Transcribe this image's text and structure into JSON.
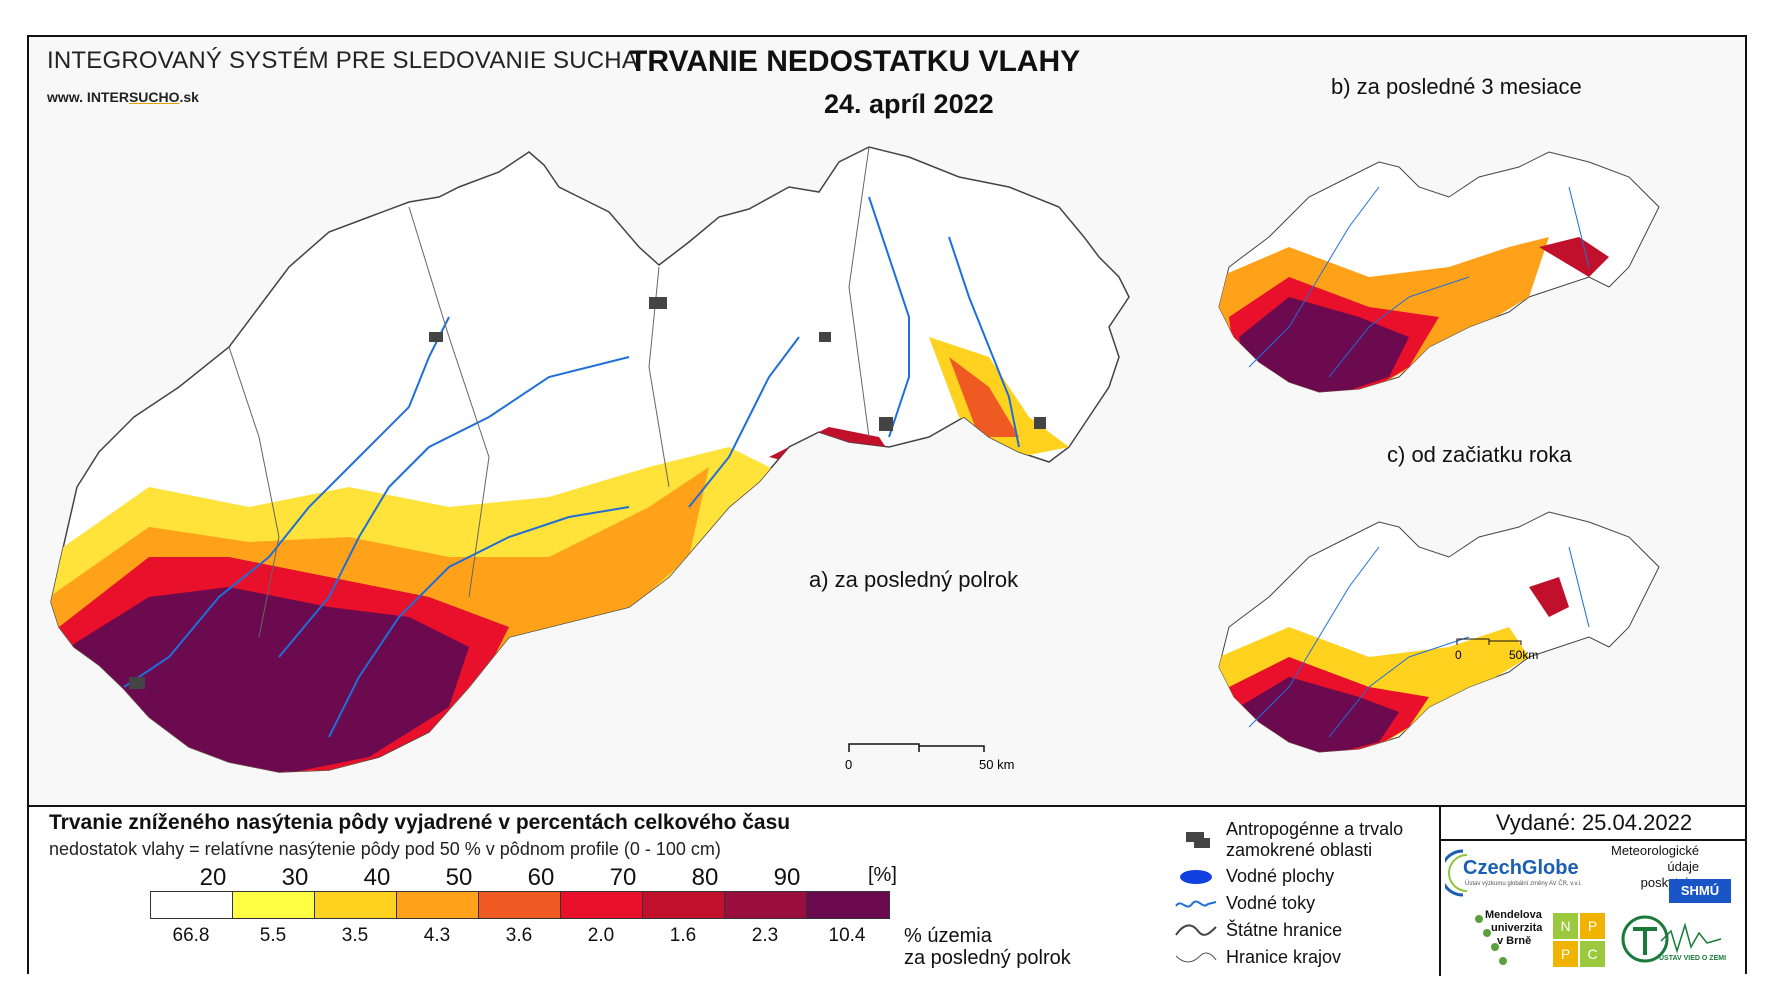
{
  "header": {
    "system_title": "INTEGROVANÝ SYSTÉM PRE SLEDOVANIE SUCHA",
    "website_prefix": "www. INTER",
    "website_highlight": "SUCHO",
    "website_suffix": ".sk",
    "title": "TRVANIE NEDOSTATKU VLAHY",
    "date": "24. apríl 2022"
  },
  "maps": {
    "a_label": "a) za posledný polrok",
    "b_label": "b) za posledné 3 mesiace",
    "c_label": "c) od začiatku roka",
    "scale_main": {
      "start": "0",
      "end": "50 km"
    },
    "scale_small": {
      "start": "0",
      "end": "50km"
    }
  },
  "legend": {
    "title": "Trvanie zníženého nasýtenia pôdy vyjadrené v percentách celkového času",
    "subtitle": "nedostatok vlahy = relatívne nasýtenie pôdy pod 50 % v pôdnom profile (0 - 100 cm)",
    "thresholds": [
      "20",
      "30",
      "40",
      "50",
      "60",
      "70",
      "80",
      "90"
    ],
    "unit": "[%]",
    "colors": [
      "#ffffff",
      "#ffff44",
      "#ffd21f",
      "#ffa21a",
      "#ef5a22",
      "#e8102a",
      "#c0102c",
      "#9a0e3e",
      "#6b0a4e"
    ],
    "area_percents": [
      "66.8",
      "5.5",
      "3.5",
      "4.3",
      "3.6",
      "2.0",
      "1.6",
      "2.3",
      "10.4"
    ],
    "area_caption_line1": "% územia",
    "area_caption_line2": "za posledný polrok"
  },
  "symbols": {
    "anthropogenic": "Antropogénne a trvalo zamokrené oblasti",
    "anthropogenic_line1": "Antropogénne a trvalo",
    "anthropogenic_line2": "zamokrené oblasti",
    "water_areas": "Vodné plochy",
    "water_streams": "Vodné toky",
    "state_border": "Štátne hranice",
    "region_border": "Hranice krajov"
  },
  "issued": "Vydané: 25.04.2022",
  "logos": {
    "czechglobe": "CzechGlobe",
    "czechglobe_sub": "Ústav výzkumu globální změny AV ČR, v.v.i.",
    "met_line1": "Meteorologické",
    "met_line2": "údaje",
    "met_line3": "poskytuje:",
    "shmu": "SHMÚ",
    "mendel_line1": "Mendelova",
    "mendel_line2": "univerzita",
    "mendel_line3": "v Brně",
    "nppc_letters": [
      "N",
      "P",
      "P",
      "C"
    ],
    "uvz": "ÚSTAV VIED O ZEMI"
  }
}
